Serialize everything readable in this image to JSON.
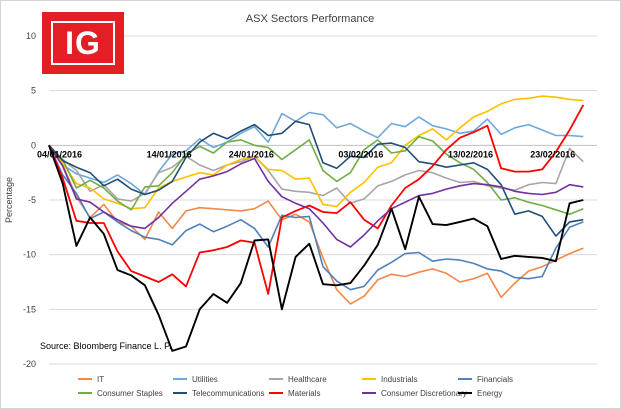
{
  "brand": {
    "logo_text": "IG",
    "logo_color": "#e31e24"
  },
  "source_note": "Source: Bloomberg Finance L. P.",
  "chart_data": {
    "type": "line",
    "title": "ASX Sectors Performance",
    "xlabel": "",
    "ylabel": "Percentage",
    "ylim": [
      -20,
      10
    ],
    "yticks": [
      10,
      5,
      0,
      -5,
      -10,
      -15,
      -20
    ],
    "grid": "horizontal",
    "legend_position": "bottom",
    "x_count": 40,
    "date_labels": [
      {
        "label": "04/01/2016",
        "index": 0
      },
      {
        "label": "14/01/2016",
        "index": 8
      },
      {
        "label": "24/01/2016",
        "index": 14
      },
      {
        "label": "03/02/2016",
        "index": 22
      },
      {
        "label": "13/02/2016",
        "index": 30
      },
      {
        "label": "23/02/2016",
        "index": 36
      }
    ],
    "series": [
      {
        "name": "IT",
        "color": "#f0894a",
        "width": 1.6,
        "values": [
          0,
          -1.8,
          -4.7,
          -6.6,
          -5.4,
          -7.0,
          -7.4,
          -8.6,
          -6.1,
          -7.6,
          -6.0,
          -5.7,
          -5.8,
          -5.9,
          -6.0,
          -5.8,
          -5.1,
          -6.8,
          -6.3,
          -7.0,
          -10.3,
          -13.2,
          -14.5,
          -13.8,
          -12.3,
          -11.8,
          -12.0,
          -11.6,
          -11.3,
          -11.7,
          -12.5,
          -12.2,
          -11.7,
          -13.9,
          -12.6,
          -11.5,
          -11.1,
          -10.5,
          -9.9,
          -9.4
        ]
      },
      {
        "name": "Utilities",
        "color": "#6fa8dc",
        "width": 1.6,
        "values": [
          0,
          -1.8,
          -2.6,
          -3.0,
          -3.4,
          -2.7,
          -3.5,
          -4.5,
          -2.4,
          -0.8,
          -0.5,
          0.6,
          -0.2,
          0.3,
          1.1,
          1.7,
          0.3,
          2.9,
          2.2,
          3.0,
          2.8,
          1.6,
          2.0,
          1.3,
          0.7,
          2.0,
          1.7,
          2.6,
          1.8,
          1.5,
          1.1,
          1.3,
          2.4,
          1.0,
          1.6,
          1.9,
          1.4,
          0.9,
          0.9,
          0.8
        ]
      },
      {
        "name": "Healthcare",
        "color": "#a6a6a6",
        "width": 1.6,
        "values": [
          0,
          -1.3,
          -2.3,
          -4.2,
          -3.6,
          -4.9,
          -5.1,
          -4.4,
          -2.5,
          -2.0,
          -1.0,
          -1.8,
          -2.3,
          -1.8,
          -1.5,
          -1.0,
          -2.3,
          -4.0,
          -4.2,
          -4.3,
          -4.6,
          -3.9,
          -5.3,
          -4.9,
          -3.7,
          -3.3,
          -2.7,
          -2.3,
          -2.5,
          -3.0,
          -3.4,
          -3.3,
          -3.7,
          -3.9,
          -4.1,
          -3.6,
          -3.4,
          -3.5,
          -0.3,
          -1.5
        ]
      },
      {
        "name": "Industrials",
        "color": "#ffc000",
        "width": 1.6,
        "values": [
          0,
          -1.6,
          -3.5,
          -3.9,
          -4.9,
          -5.3,
          -5.8,
          -5.7,
          -3.9,
          -3.3,
          -2.9,
          -2.5,
          -2.7,
          -1.8,
          -1.3,
          -1.0,
          -2.2,
          -2.3,
          -3.1,
          -3.0,
          -5.4,
          -5.6,
          -4.3,
          -3.4,
          -2.0,
          -1.6,
          0.0,
          0.9,
          1.5,
          0.5,
          1.6,
          2.6,
          3.1,
          3.8,
          4.2,
          4.3,
          4.5,
          4.4,
          4.2,
          4.1
        ]
      },
      {
        "name": "Financials",
        "color": "#4f81bd",
        "width": 1.6,
        "values": [
          0,
          -2.7,
          -4.4,
          -6.7,
          -6.1,
          -7.0,
          -7.8,
          -8.4,
          -8.6,
          -9.1,
          -7.8,
          -7.2,
          -7.9,
          -7.4,
          -6.8,
          -7.6,
          -9.3,
          -6.4,
          -6.6,
          -6.5,
          -11.1,
          -12.4,
          -13.2,
          -12.9,
          -11.4,
          -10.7,
          -9.9,
          -9.8,
          -10.6,
          -10.4,
          -10.5,
          -10.8,
          -11.3,
          -11.5,
          -12.1,
          -12.2,
          -12.0,
          -9.4,
          -7.5,
          -7.0
        ]
      },
      {
        "name": "Consumer Staples",
        "color": "#70ad47",
        "width": 1.6,
        "values": [
          0,
          -1.3,
          -3.9,
          -3.2,
          -3.9,
          -5.1,
          -5.9,
          -3.8,
          -3.7,
          -2.5,
          -0.8,
          -0.1,
          -0.7,
          0.3,
          0.5,
          0.0,
          -0.2,
          -1.3,
          -0.4,
          0.5,
          -2.3,
          -3.3,
          -2.5,
          -0.4,
          0.5,
          -0.7,
          -0.5,
          0.8,
          0.4,
          -0.8,
          -1.6,
          -2.2,
          -3.4,
          -5.0,
          -4.8,
          -5.2,
          -5.5,
          -5.9,
          -6.3,
          -5.8
        ]
      },
      {
        "name": "Telecommunications",
        "color": "#1f4e79",
        "width": 1.6,
        "values": [
          0,
          -1.4,
          -2.0,
          -2.5,
          -3.7,
          -3.1,
          -4.0,
          -4.5,
          -4.1,
          -3.3,
          -1.1,
          0.3,
          1.1,
          0.6,
          1.3,
          1.9,
          0.9,
          1.1,
          2.2,
          1.9,
          -1.6,
          -2.1,
          -1.0,
          -1.1,
          0.1,
          0.2,
          -0.2,
          -1.5,
          -1.7,
          -2.0,
          -1.8,
          -1.6,
          -2.2,
          -3.6,
          -6.3,
          -6.0,
          -6.5,
          -8.3,
          -7.0,
          -6.8
        ]
      },
      {
        "name": "Materials",
        "color": "#ff0000",
        "width": 1.8,
        "values": [
          0,
          -3.0,
          -6.9,
          -7.1,
          -7.1,
          -9.7,
          -11.5,
          -12.0,
          -12.5,
          -11.8,
          -12.9,
          -9.8,
          -9.6,
          -9.3,
          -8.7,
          -8.9,
          -13.6,
          -6.6,
          -6.0,
          -5.5,
          -6.1,
          -6.2,
          -5.2,
          -6.8,
          -7.6,
          -5.5,
          -3.9,
          -3.1,
          -1.9,
          -0.4,
          0.7,
          1.2,
          1.8,
          -2.1,
          -2.4,
          -2.4,
          -2.2,
          -0.6,
          1.4,
          3.7
        ]
      },
      {
        "name": "Consumer Discretionary",
        "color": "#7030a0",
        "width": 1.6,
        "values": [
          0,
          -1.9,
          -4.9,
          -5.2,
          -6.1,
          -6.8,
          -7.4,
          -7.6,
          -6.6,
          -5.3,
          -4.2,
          -3.1,
          -2.8,
          -2.4,
          -1.7,
          -1.2,
          -3.3,
          -4.7,
          -5.3,
          -5.8,
          -7.1,
          -8.6,
          -9.3,
          -8.2,
          -6.9,
          -5.8,
          -5.2,
          -4.6,
          -4.4,
          -4.0,
          -3.7,
          -3.5,
          -3.6,
          -3.8,
          -4.2,
          -4.4,
          -4.5,
          -4.3,
          -3.6,
          -3.8
        ]
      },
      {
        "name": "Energy",
        "color": "#000000",
        "width": 1.9,
        "values": [
          0,
          -3.5,
          -9.2,
          -6.6,
          -8.1,
          -11.4,
          -11.9,
          -12.8,
          -15.5,
          -18.8,
          -18.4,
          -15.0,
          -13.6,
          -14.4,
          -12.6,
          -8.7,
          -8.6,
          -15.0,
          -10.2,
          -9.0,
          -12.7,
          -12.8,
          -12.6,
          -11.0,
          -9.1,
          -5.8,
          -9.5,
          -4.7,
          -7.2,
          -7.3,
          -7.0,
          -6.7,
          -7.4,
          -10.4,
          -10.1,
          -10.2,
          -10.3,
          -10.6,
          -5.3,
          -5.0
        ]
      }
    ]
  }
}
